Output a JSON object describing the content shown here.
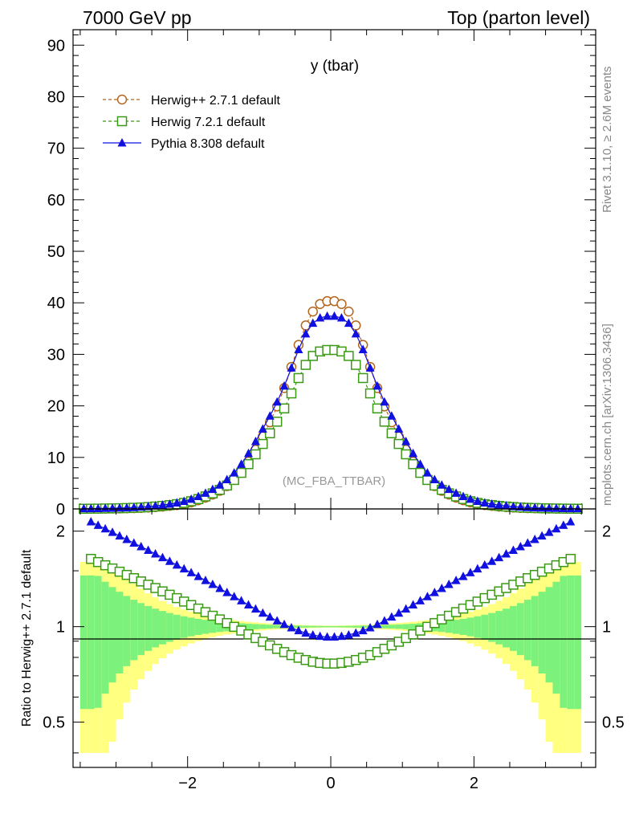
{
  "header": {
    "left": "7000 GeV pp",
    "right": "Top (parton level)"
  },
  "side_text": {
    "rivet": "Rivet 3.1.10, ≥ 2.6M events",
    "source": "mcplots.cern.ch [arXiv:1306.3436]"
  },
  "chart_data": {
    "type": "line",
    "title": "y (tbar)",
    "watermark": "(MC_FBA_TTBAR)",
    "xlabel": "",
    "ylabel": "",
    "xlim": [
      -3.6,
      3.7
    ],
    "ylim": [
      0,
      93
    ],
    "x_ticks": [
      -2,
      0,
      2
    ],
    "x_tick_labels": [
      "−2",
      "0",
      "2"
    ],
    "y_ticks": [
      0,
      10,
      20,
      30,
      40,
      50,
      60,
      70,
      80,
      90
    ],
    "legend_position": "top-left",
    "series": [
      {
        "name": "Herwig++ 2.7.1 default",
        "color": "#b5651d",
        "marker": "open-circle",
        "dashed": true,
        "peak": 41.2,
        "width": 0.97
      },
      {
        "name": "Herwig 7.2.1 default",
        "color": "#3a9a14",
        "marker": "open-square",
        "dashed": true,
        "peak": 31.5,
        "width": 1.06
      },
      {
        "name": "Pythia 8.308 default",
        "color": "#1010e0",
        "marker": "filled-triangle",
        "dashed": false,
        "peak": 38.2,
        "width": 1.07
      }
    ],
    "ratio": {
      "ylabel": "Ratio to Herwig++ 2.7.1 default",
      "ylim": [
        0.36,
        2.35
      ],
      "log_scale": true,
      "y_ticks": [
        0.5,
        1,
        2
      ],
      "y_tick_labels": [
        "0.5",
        "1",
        "2"
      ],
      "band_colors": {
        "stat": "#7cf27c",
        "total": "#ffff80"
      }
    }
  }
}
